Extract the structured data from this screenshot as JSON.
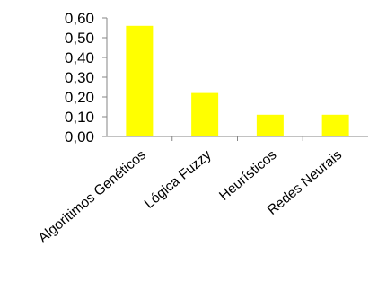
{
  "chart_data": {
    "type": "bar",
    "categories": [
      "Algoritimos Genéticos",
      "Lógica Fuzzy",
      "Heurísticos",
      "Redes Neurais"
    ],
    "values": [
      0.56,
      0.22,
      0.11,
      0.11
    ],
    "ylim": [
      0,
      0.6
    ],
    "yticks": [
      "0,00",
      "0,10",
      "0,20",
      "0,30",
      "0,40",
      "0,50",
      "0,60"
    ],
    "bar_color": "#ffff00",
    "grid": false,
    "legend": "none"
  }
}
